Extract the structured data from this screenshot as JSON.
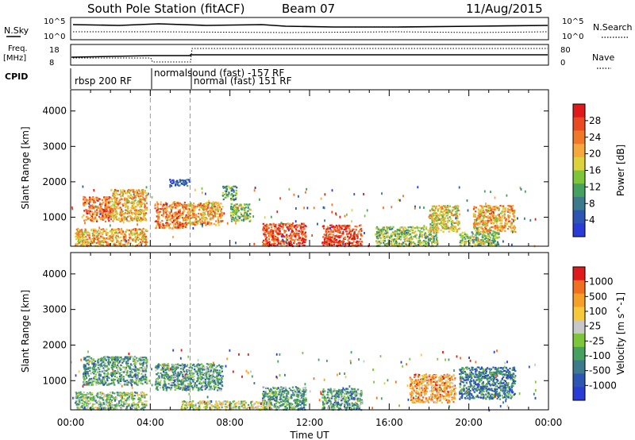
{
  "header": {
    "title": "South Pole Station (fitACF)",
    "beam": "Beam 07",
    "date": "11/Aug/2015"
  },
  "strips": {
    "nsky_label": "N.Sky",
    "nsearch_label": "N.Search",
    "freq_label_1": "Freq.",
    "freq_label_2": "[MHz]",
    "nave_label": "Nave",
    "cpid_label": "CPID",
    "nsky_ticks": [
      "10^5",
      "10^0"
    ],
    "nsearch_ticks": [
      "10^5",
      "10^0"
    ],
    "freq_ticks": [
      "18",
      "8"
    ],
    "nave_ticks": [
      "80",
      "0"
    ],
    "cpid_segments": [
      {
        "label": "rbsp 200 RF",
        "row": 2
      },
      {
        "label": "normalsound (fast) -157 RF",
        "row": 1
      },
      {
        "label": "normal (fast) 151 RF",
        "row": 2
      }
    ]
  },
  "chart_data": [
    {
      "type": "heatmap",
      "name": "power",
      "xlabel": "",
      "ylabel": "Slant Range [km]",
      "xlim": [
        0,
        24
      ],
      "ylim": [
        180,
        4600
      ],
      "yticks": [
        "1000",
        "2000",
        "3000",
        "4000"
      ],
      "colorbar_label": "Power [dB]",
      "colorbar_ticks": [
        "4",
        "8",
        "12",
        "16",
        "20",
        "24",
        "28"
      ],
      "colors": [
        "#2a3cd6",
        "#2d56b4",
        "#3c7a8c",
        "#46a060",
        "#7dc63a",
        "#dcd23c",
        "#f6a83c",
        "#f07828",
        "#ea4a22",
        "#e01a1a"
      ],
      "regions": [
        {
          "t": [
            0.6,
            2.0
          ],
          "r": [
            900,
            1600
          ],
          "level": 7
        },
        {
          "t": [
            2.0,
            3.8
          ],
          "r": [
            900,
            1800
          ],
          "level": 6
        },
        {
          "t": [
            4.2,
            5.8
          ],
          "r": [
            700,
            1450
          ],
          "level": 7
        },
        {
          "t": [
            5.8,
            7.6
          ],
          "r": [
            800,
            1450
          ],
          "level": 6
        },
        {
          "t": [
            4.9,
            6.0
          ],
          "r": [
            1900,
            2100
          ],
          "level": 1
        },
        {
          "t": [
            7.6,
            8.3
          ],
          "r": [
            1500,
            1900
          ],
          "level": 3
        },
        {
          "t": [
            8.0,
            9.0
          ],
          "r": [
            900,
            1400
          ],
          "level": 4
        },
        {
          "t": [
            0.2,
            3.8
          ],
          "r": [
            200,
            700
          ],
          "level": 6
        },
        {
          "t": [
            9.6,
            11.8
          ],
          "r": [
            200,
            850
          ],
          "level": 8
        },
        {
          "t": [
            12.6,
            14.6
          ],
          "r": [
            200,
            800
          ],
          "level": 8
        },
        {
          "t": [
            15.3,
            18.4
          ],
          "r": [
            200,
            750
          ],
          "level": 4
        },
        {
          "t": [
            18.0,
            19.5
          ],
          "r": [
            600,
            1350
          ],
          "level": 5
        },
        {
          "t": [
            20.2,
            22.3
          ],
          "r": [
            600,
            1350
          ],
          "level": 6
        },
        {
          "t": [
            19.5,
            21.5
          ],
          "r": [
            200,
            600
          ],
          "level": 4
        }
      ]
    },
    {
      "type": "heatmap",
      "name": "velocity",
      "xlabel": "Time UT",
      "ylabel": "Slant Range [km]",
      "xlim": [
        0,
        24
      ],
      "ylim": [
        180,
        4600
      ],
      "xticks": [
        "00:00",
        "04:00",
        "08:00",
        "12:00",
        "16:00",
        "20:00",
        "00:00"
      ],
      "yticks": [
        "1000",
        "2000",
        "3000",
        "4000"
      ],
      "colorbar_label": "Velocity [m s^-1]",
      "colorbar_ticks": [
        "1000",
        "500",
        "100",
        "25",
        "-25",
        "-100",
        "-500",
        "-1000"
      ],
      "colors": [
        "#2a3cd6",
        "#2d56b4",
        "#3c7a8c",
        "#46a060",
        "#7dc63a",
        "#c8c8c8",
        "#f6c83c",
        "#f6a028",
        "#f07020",
        "#e01a1a"
      ],
      "regions": [
        {
          "t": [
            0.6,
            3.8
          ],
          "r": [
            900,
            1700
          ],
          "level": 3
        },
        {
          "t": [
            4.2,
            7.6
          ],
          "r": [
            750,
            1500
          ],
          "level": 3
        },
        {
          "t": [
            0.2,
            3.8
          ],
          "r": [
            200,
            700
          ],
          "level": 4
        },
        {
          "t": [
            9.6,
            11.8
          ],
          "r": [
            200,
            850
          ],
          "level": 3
        },
        {
          "t": [
            12.6,
            14.6
          ],
          "r": [
            200,
            800
          ],
          "level": 3
        },
        {
          "t": [
            17.0,
            19.3
          ],
          "r": [
            400,
            1200
          ],
          "level": 7
        },
        {
          "t": [
            19.5,
            22.3
          ],
          "r": [
            500,
            1400
          ],
          "level": 2
        },
        {
          "t": [
            5.5,
            10.0
          ],
          "r": [
            200,
            450
          ],
          "level": 5
        }
      ]
    }
  ]
}
